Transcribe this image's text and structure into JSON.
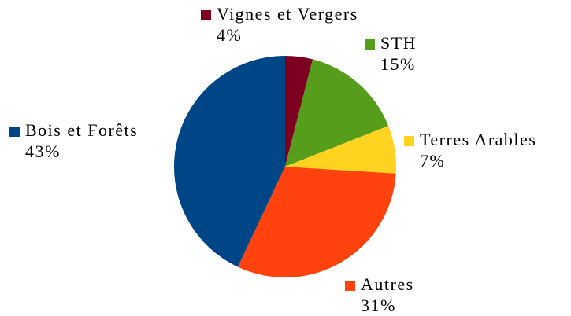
{
  "chart_data": {
    "type": "pie",
    "categories": [
      "Vignes et Vergers",
      "STH",
      "Terres Arables",
      "Autres",
      "Bois et Forêts"
    ],
    "values": [
      4,
      15,
      7,
      31,
      43
    ],
    "value_labels": [
      "4%",
      "15%",
      "7%",
      "31%",
      "43%"
    ],
    "colors": [
      "#7e0021",
      "#579d1c",
      "#ffd320",
      "#ff420e",
      "#004586"
    ]
  }
}
